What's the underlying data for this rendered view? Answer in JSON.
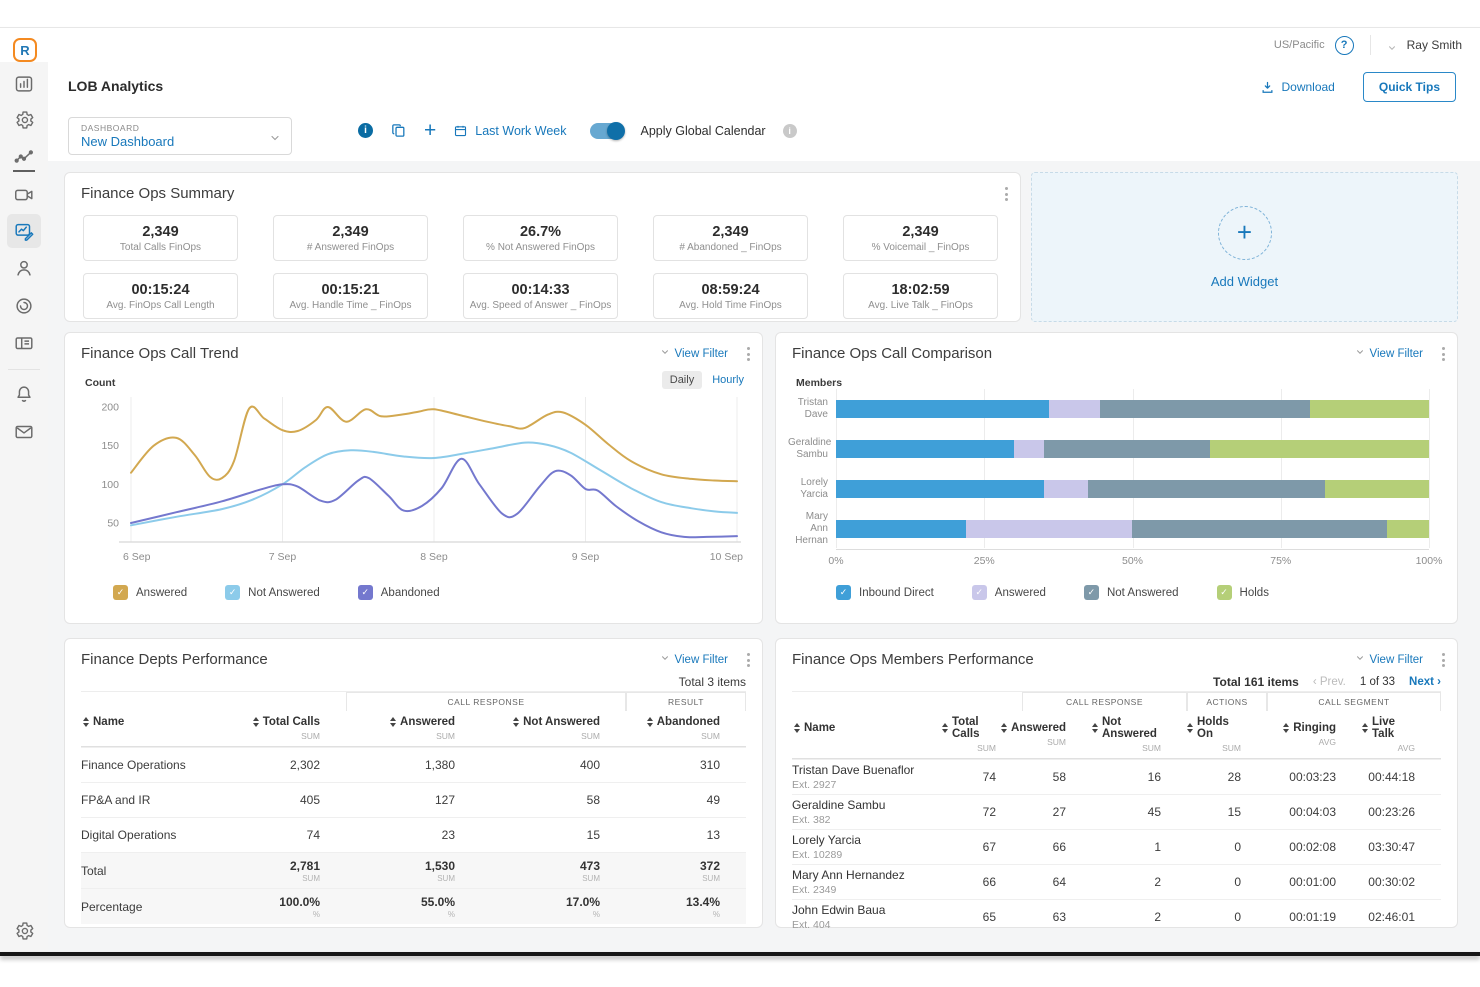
{
  "topbar": {
    "timezone": "US/Pacific",
    "user": "Ray Smith"
  },
  "header": {
    "title": "LOB Analytics",
    "download_label": "Download",
    "quick_tips_label": "Quick Tips"
  },
  "controls": {
    "dashboard_label": "DASHBOARD",
    "dashboard_value": "New Dashboard",
    "date_range_label": "Last Work Week",
    "apply_global_calendar_label": "Apply Global Calendar"
  },
  "summary": {
    "title": "Finance Ops Summary",
    "cards": [
      {
        "value": "2,349",
        "label": "Total Calls FinOps"
      },
      {
        "value": "2,349",
        "label": "# Answered FinOps"
      },
      {
        "value": "26.7%",
        "label": "% Not Answered FinOps"
      },
      {
        "value": "2,349",
        "label": "# Abandoned _ FinOps"
      },
      {
        "value": "2,349",
        "label": "% Voicemail _ FinOps"
      },
      {
        "value": "00:15:24",
        "label": "Avg. FinOps Call Length"
      },
      {
        "value": "00:15:21",
        "label": "Avg. Handle Time _ FinOps"
      },
      {
        "value": "00:14:33",
        "label": "Avg. Speed of Answer _ FinOps"
      },
      {
        "value": "08:59:24",
        "label": "Avg. Hold Time FinOps"
      },
      {
        "value": "18:02:59",
        "label": "Avg. Live Talk _ FinOps"
      }
    ]
  },
  "add_widget": {
    "label": "Add Widget"
  },
  "trend_widget": {
    "title": "Finance Ops Call Trend",
    "view_filter_label": "View Filter",
    "axis_label": "Count",
    "granularity": {
      "daily": "Daily",
      "hourly": "Hourly",
      "selected": "Daily"
    }
  },
  "comparison_widget": {
    "title": "Finance Ops Call Comparison",
    "view_filter_label": "View Filter",
    "axis_label": "Members"
  },
  "depts_widget": {
    "title": "Finance Depts Performance",
    "view_filter_label": "View Filter",
    "items_summary": "Total 3 items",
    "column_groups": [
      {
        "label": "",
        "span": 2
      },
      {
        "label": "CALL RESPONSE",
        "span": 2
      },
      {
        "label": "RESULT",
        "span": 1
      }
    ],
    "columns": [
      {
        "label": "Name",
        "sub": "",
        "align": "left"
      },
      {
        "label": "Total Calls",
        "sub": "SUM"
      },
      {
        "label": "Answered",
        "sub": "SUM"
      },
      {
        "label": "Not Answered",
        "sub": "SUM"
      },
      {
        "label": "Abandoned",
        "sub": "SUM"
      }
    ],
    "rows": [
      [
        "Finance Operations",
        "2,302",
        "1,380",
        "400",
        "310"
      ],
      [
        "FP&A and IR",
        "405",
        "127",
        "58",
        "49"
      ],
      [
        "Digital Operations",
        "74",
        "23",
        "15",
        "13"
      ]
    ],
    "summary_rows": [
      {
        "label": "Total",
        "sub": "SUM",
        "values": [
          "2,781",
          "1,530",
          "473",
          "372"
        ]
      },
      {
        "label": "Percentage",
        "sub": "%",
        "values": [
          "100.0%",
          "55.0%",
          "17.0%",
          "13.4%"
        ]
      }
    ]
  },
  "members_widget": {
    "title": "Finance Ops Members Performance",
    "view_filter_label": "View Filter",
    "pagination": {
      "total": "Total 161 items",
      "prev": "‹ Prev.",
      "page": "1 of 33",
      "next": "Next ›"
    },
    "column_groups": [
      {
        "label": "",
        "span": 2
      },
      {
        "label": "CALL RESPONSE",
        "span": 2
      },
      {
        "label": "ACTIONS",
        "span": 1
      },
      {
        "label": "CALL SEGMENT",
        "span": 2
      }
    ],
    "columns": [
      {
        "label": "Name",
        "sub": "",
        "align": "left"
      },
      {
        "label": "Total Calls",
        "sub": "SUM"
      },
      {
        "label": "Answered",
        "sub": "SUM"
      },
      {
        "label": "Not Answered",
        "sub": "SUM"
      },
      {
        "label": "Holds On",
        "sub": "SUM"
      },
      {
        "label": "Ringing",
        "sub": "AVG"
      },
      {
        "label": "Live Talk",
        "sub": "AVG"
      }
    ],
    "rows": [
      {
        "name": "Tristan Dave Buenaflor",
        "ext": "Ext. 2927",
        "values": [
          "74",
          "58",
          "16",
          "28",
          "00:03:23",
          "00:44:18"
        ]
      },
      {
        "name": "Geraldine Sambu",
        "ext": "Ext. 382",
        "values": [
          "72",
          "27",
          "45",
          "15",
          "00:04:03",
          "00:23:26"
        ]
      },
      {
        "name": "Lorely Yarcia",
        "ext": "Ext. 10289",
        "values": [
          "67",
          "66",
          "1",
          "0",
          "00:02:08",
          "03:30:47"
        ]
      },
      {
        "name": "Mary Ann Hernandez",
        "ext": "Ext. 2349",
        "values": [
          "66",
          "64",
          "2",
          "0",
          "00:01:00",
          "00:30:02"
        ]
      },
      {
        "name": "John Edwin Baua",
        "ext": "Ext. 404",
        "values": [
          "65",
          "63",
          "2",
          "0",
          "00:01:19",
          "02:46:01"
        ]
      }
    ]
  },
  "chart_data": [
    {
      "type": "line",
      "title": "Finance Ops Call Trend",
      "xlabel": "",
      "ylabel": "Count",
      "x_ticks": [
        "6 Sep",
        "7 Sep",
        "8 Sep",
        "9 Sep",
        "10 Sep"
      ],
      "y_ticks": [
        50,
        100,
        150,
        200
      ],
      "x_range": [
        0,
        4
      ],
      "y_range": [
        25,
        213
      ],
      "grid": "vertical",
      "legend_position": "bottom",
      "series": [
        {
          "name": "Answered",
          "color": "#D2A850",
          "points": [
            [
              0,
              115
            ],
            [
              0.15,
              150
            ],
            [
              0.3,
              160
            ],
            [
              0.42,
              138
            ],
            [
              0.52,
              110
            ],
            [
              0.6,
              108
            ],
            [
              0.68,
              130
            ],
            [
              0.78,
              198
            ],
            [
              0.88,
              185
            ],
            [
              1.0,
              170
            ],
            [
              1.1,
              169
            ],
            [
              1.22,
              183
            ],
            [
              1.3,
              200
            ],
            [
              1.42,
              181
            ],
            [
              1.55,
              197
            ],
            [
              1.65,
              188
            ],
            [
              1.78,
              190
            ],
            [
              1.9,
              194
            ],
            [
              2.0,
              197
            ],
            [
              2.18,
              189
            ],
            [
              2.35,
              181
            ],
            [
              2.5,
              175
            ],
            [
              2.6,
              173
            ],
            [
              2.75,
              190
            ],
            [
              2.85,
              193
            ],
            [
              3.0,
              177
            ],
            [
              3.15,
              152
            ],
            [
              3.3,
              130
            ],
            [
              3.5,
              113
            ],
            [
              3.7,
              107
            ],
            [
              3.85,
              105
            ],
            [
              4,
              104
            ]
          ]
        },
        {
          "name": "Not Answered",
          "color": "#8CCBEA",
          "points": [
            [
              0,
              47
            ],
            [
              0.3,
              58
            ],
            [
              0.6,
              68
            ],
            [
              0.8,
              80
            ],
            [
              1.0,
              100
            ],
            [
              1.15,
              122
            ],
            [
              1.3,
              139
            ],
            [
              1.45,
              144
            ],
            [
              1.6,
              142
            ],
            [
              1.8,
              136
            ],
            [
              2.0,
              134
            ],
            [
              2.2,
              140
            ],
            [
              2.4,
              147
            ],
            [
              2.6,
              154
            ],
            [
              2.75,
              151
            ],
            [
              2.9,
              141
            ],
            [
              3.1,
              118
            ],
            [
              3.3,
              95
            ],
            [
              3.5,
              77
            ],
            [
              3.7,
              69
            ],
            [
              3.85,
              65
            ],
            [
              4,
              63
            ]
          ]
        },
        {
          "name": "Abandoned",
          "color": "#7478CE",
          "points": [
            [
              0,
              50
            ],
            [
              0.3,
              64
            ],
            [
              0.6,
              78
            ],
            [
              0.85,
              93
            ],
            [
              1.0,
              100
            ],
            [
              1.1,
              97
            ],
            [
              1.25,
              79
            ],
            [
              1.35,
              80
            ],
            [
              1.5,
              105
            ],
            [
              1.57,
              108
            ],
            [
              1.7,
              85
            ],
            [
              1.8,
              66
            ],
            [
              1.92,
              72
            ],
            [
              2.05,
              95
            ],
            [
              2.18,
              133
            ],
            [
              2.3,
              100
            ],
            [
              2.45,
              62
            ],
            [
              2.55,
              62
            ],
            [
              2.7,
              98
            ],
            [
              2.8,
              117
            ],
            [
              2.9,
              112
            ],
            [
              3.0,
              94
            ],
            [
              3.08,
              92
            ],
            [
              3.2,
              72
            ],
            [
              3.35,
              52
            ],
            [
              3.5,
              38
            ],
            [
              3.65,
              32
            ],
            [
              3.8,
              32
            ],
            [
              4,
              33
            ]
          ]
        }
      ]
    },
    {
      "type": "bar",
      "orientation": "horizontal",
      "stacked": true,
      "unit": "%",
      "title": "Finance Ops Call Comparison",
      "ylabel": "Members",
      "categories": [
        "Tristan Dave",
        "Geraldine Sambu",
        "Lorely Yarcia",
        "Mary Ann Hernan"
      ],
      "x_ticks": [
        "0%",
        "25%",
        "50%",
        "75%",
        "100%"
      ],
      "legend_position": "bottom",
      "series": [
        {
          "name": "Inbound Direct",
          "color": "#3F9FD8",
          "values": [
            36,
            30,
            35,
            22
          ]
        },
        {
          "name": "Answered",
          "color": "#C9C7EA",
          "values": [
            8.5,
            5,
            7.5,
            28
          ]
        },
        {
          "name": "Not Answered",
          "color": "#7E99A9",
          "values": [
            35.5,
            28,
            40,
            43
          ]
        },
        {
          "name": "Holds",
          "color": "#B5CF78",
          "values": [
            20,
            37,
            17.5,
            7
          ]
        }
      ]
    }
  ],
  "colors": {
    "accent": "#1878bb"
  }
}
